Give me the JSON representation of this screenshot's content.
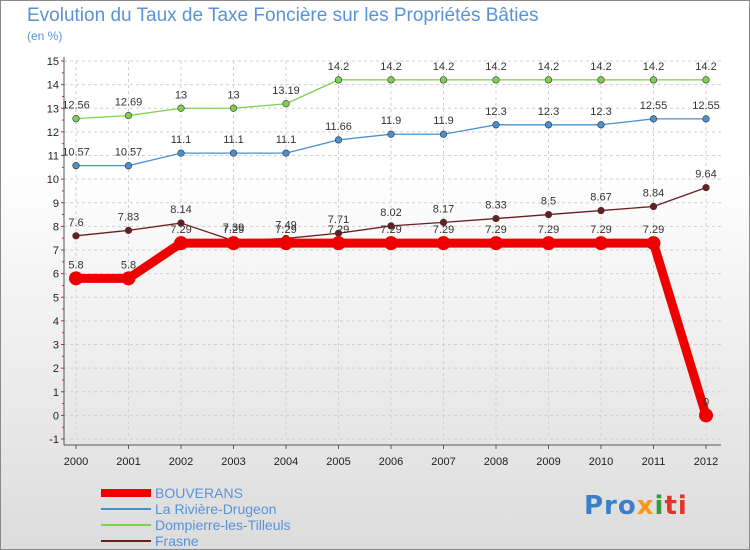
{
  "header": {
    "title": "Evolution du Taux de Taxe Foncière sur les Propriétés Bâties",
    "unit": "(en %)"
  },
  "logo": {
    "parts": [
      "Pro",
      "x",
      "i",
      "ti"
    ]
  },
  "chart_data": {
    "type": "line",
    "title": "Evolution du Taux de Taxe Foncière sur les Propriétés Bâties",
    "ylabel": "(en %)",
    "xlabel": "",
    "x": [
      "2000",
      "2001",
      "2002",
      "2003",
      "2004",
      "2005",
      "2006",
      "2007",
      "2008",
      "2009",
      "2010",
      "2011",
      "2012"
    ],
    "ylim": [
      -1,
      15
    ],
    "yticks": [
      -1,
      0,
      1,
      2,
      3,
      4,
      5,
      6,
      7,
      8,
      9,
      10,
      11,
      12,
      13,
      14,
      15
    ],
    "legend_position": "bottom-left",
    "series": [
      {
        "name": "BOUVERANS",
        "color": "#ee0000",
        "width": "thick",
        "values": [
          5.8,
          5.8,
          7.29,
          7.29,
          7.29,
          7.29,
          7.29,
          7.29,
          7.29,
          7.29,
          7.29,
          7.29,
          0
        ],
        "labels": [
          "5.8",
          "5.8",
          "7.29",
          "7.29",
          "7.29",
          "7.29",
          "7.29",
          "7.29",
          "7.29",
          "7.29",
          "7.29",
          "7.29",
          "0"
        ]
      },
      {
        "name": "La Rivière-Drugeon",
        "color": "#4a8fce",
        "width": "thin",
        "values": [
          10.57,
          10.57,
          11.1,
          11.1,
          11.1,
          11.66,
          11.9,
          11.9,
          12.3,
          12.3,
          12.3,
          12.55,
          12.55
        ],
        "labels": [
          "10.57",
          "10.57",
          "11.1",
          "11.1",
          "11.1",
          "11.66",
          "11.9",
          "11.9",
          "12.3",
          "12.3",
          "12.3",
          "12.55",
          "12.55"
        ]
      },
      {
        "name": "Dompierre-les-Tilleuls",
        "color": "#7ed14e",
        "width": "thin",
        "values": [
          12.56,
          12.69,
          13,
          13,
          13.19,
          14.2,
          14.2,
          14.2,
          14.2,
          14.2,
          14.2,
          14.2,
          14.2
        ],
        "labels": [
          "12.56",
          "12.69",
          "13",
          "13",
          "13.19",
          "14.2",
          "14.2",
          "14.2",
          "14.2",
          "14.2",
          "14.2",
          "14.2",
          "14.2"
        ]
      },
      {
        "name": "Frasne",
        "color": "#6b1e1e",
        "width": "thin",
        "values": [
          7.6,
          7.83,
          8.14,
          7.39,
          7.49,
          7.71,
          8.02,
          8.17,
          8.33,
          8.5,
          8.67,
          8.84,
          9.64
        ],
        "labels": [
          "7.6",
          "7.83",
          "8.14",
          "7.39",
          "7.49",
          "7.71",
          "8.02",
          "8.17",
          "8.33",
          "8.5",
          "8.67",
          "8.84",
          "9.64"
        ]
      }
    ]
  }
}
